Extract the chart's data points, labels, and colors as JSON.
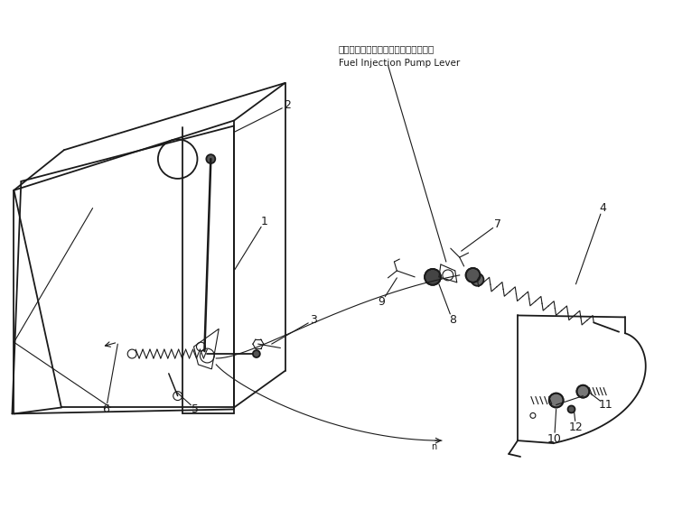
{
  "bg_color": "#ffffff",
  "line_color": "#1a1a1a",
  "figsize": [
    7.45,
    5.85
  ],
  "dpi": 100,
  "annotation_jp": "フェルインジェクションポンプレバー",
  "annotation_en": "Fuel Injection Pump Lever",
  "lw": 1.3,
  "lw_t": 0.8
}
